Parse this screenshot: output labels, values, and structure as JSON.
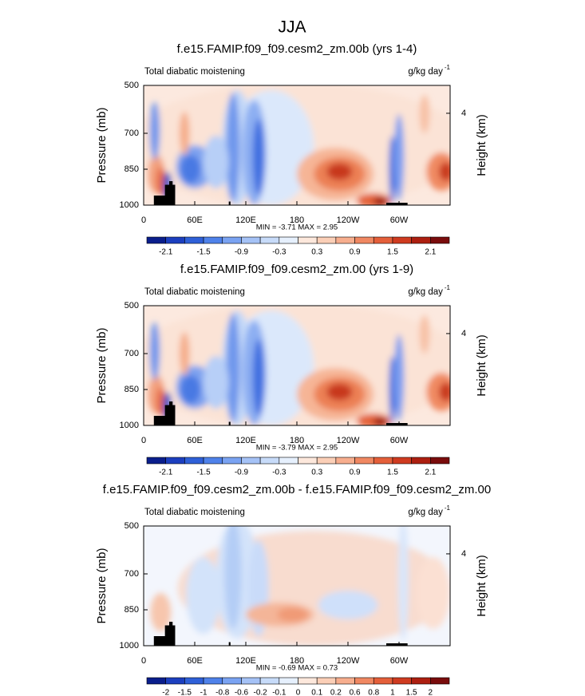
{
  "title": "JJA",
  "chart_data": [
    {
      "type": "contour",
      "title": "f.e15.FAMIP.f09_f09.cesm2_zm.00b (yrs 1-4)",
      "subtitle": "Total diabatic moistening",
      "units": "g/kg day",
      "units_exponent": "-1",
      "ylabel": "Pressure (mb)",
      "y2label": "Height (km)",
      "ylim": [
        500,
        1000
      ],
      "yticks": [
        500,
        700,
        850,
        1000
      ],
      "y2ticks": [
        4
      ],
      "xlim": [
        0,
        360
      ],
      "xticks": [
        0,
        {
          "value": 60,
          "label": "60E"
        },
        {
          "value": 120,
          "label": "120E"
        },
        180,
        {
          "value": 240,
          "label": "120W"
        },
        {
          "value": 300,
          "label": "60W"
        }
      ],
      "stats": "MIN =  -3.71  MAX =   2.95",
      "colorbar": {
        "colors": [
          "#0a1e8c",
          "#1c3fbf",
          "#2f60d8",
          "#4f82ea",
          "#7aa3f2",
          "#a5c2f6",
          "#c7dbf9",
          "#e6f0fd",
          "#fde8dc",
          "#fbcfb7",
          "#f7ae8e",
          "#f08862",
          "#e45f3a",
          "#cf3b20",
          "#ad1f10",
          "#7a0c0c"
        ],
        "levels": [
          -2.1,
          -1.8,
          -1.5,
          -1.2,
          -0.9,
          -0.6,
          -0.3,
          0,
          0.3,
          0.6,
          0.9,
          1.2,
          1.5,
          1.8,
          2.1
        ],
        "labeled_levels": [
          -2.1,
          -1.5,
          -0.9,
          -0.3,
          0.3,
          0.9,
          1.5,
          2.1
        ]
      }
    },
    {
      "type": "contour",
      "title": "f.e15.FAMIP.f09_f09.cesm2_zm.00 (yrs 1-9)",
      "subtitle": "Total diabatic moistening",
      "units": "g/kg day",
      "units_exponent": "-1",
      "ylabel": "Pressure (mb)",
      "y2label": "Height (km)",
      "ylim": [
        500,
        1000
      ],
      "yticks": [
        500,
        700,
        850,
        1000
      ],
      "y2ticks": [
        4
      ],
      "xlim": [
        0,
        360
      ],
      "xticks": [
        0,
        {
          "value": 60,
          "label": "60E"
        },
        {
          "value": 120,
          "label": "120E"
        },
        180,
        {
          "value": 240,
          "label": "120W"
        },
        {
          "value": 300,
          "label": "60W"
        }
      ],
      "stats": "MIN =  -3.79  MAX =   2.95",
      "colorbar": {
        "colors": [
          "#0a1e8c",
          "#1c3fbf",
          "#2f60d8",
          "#4f82ea",
          "#7aa3f2",
          "#a5c2f6",
          "#c7dbf9",
          "#e6f0fd",
          "#fde8dc",
          "#fbcfb7",
          "#f7ae8e",
          "#f08862",
          "#e45f3a",
          "#cf3b20",
          "#ad1f10",
          "#7a0c0c"
        ],
        "levels": [
          -2.1,
          -1.8,
          -1.5,
          -1.2,
          -0.9,
          -0.6,
          -0.3,
          0,
          0.3,
          0.6,
          0.9,
          1.2,
          1.5,
          1.8,
          2.1
        ],
        "labeled_levels": [
          -2.1,
          -1.5,
          -0.9,
          -0.3,
          0.3,
          0.9,
          1.5,
          2.1
        ]
      }
    },
    {
      "type": "contour",
      "title": "f.e15.FAMIP.f09_f09.cesm2_zm.00b - f.e15.FAMIP.f09_f09.cesm2_zm.00",
      "subtitle": "Total diabatic moistening",
      "units": "g/kg day",
      "units_exponent": "-1",
      "ylabel": "Pressure (mb)",
      "y2label": "Height (km)",
      "ylim": [
        500,
        1000
      ],
      "yticks": [
        500,
        700,
        850,
        1000
      ],
      "y2ticks": [
        4
      ],
      "xlim": [
        0,
        360
      ],
      "xticks": [
        0,
        {
          "value": 60,
          "label": "60E"
        },
        {
          "value": 120,
          "label": "120E"
        },
        180,
        {
          "value": 240,
          "label": "120W"
        },
        {
          "value": 300,
          "label": "60W"
        }
      ],
      "stats": "MIN =  -0.69  MAX =   0.73",
      "colorbar": {
        "colors": [
          "#0a1e8c",
          "#1c3fbf",
          "#2f60d8",
          "#4f82ea",
          "#7aa3f2",
          "#a5c2f6",
          "#c7dbf9",
          "#e6f0fd",
          "#fde8dc",
          "#fbcfb7",
          "#f7ae8e",
          "#f08862",
          "#e45f3a",
          "#cf3b20",
          "#ad1f10",
          "#7a0c0c"
        ],
        "levels": [
          -2,
          -1.5,
          -1,
          -0.8,
          -0.6,
          -0.2,
          -0.1,
          0,
          0.1,
          0.2,
          0.6,
          0.8,
          1,
          1.5,
          2
        ],
        "labeled_levels": [
          -2,
          -1.5,
          -1,
          -0.8,
          -0.6,
          -0.2,
          -0.1,
          0,
          0.1,
          0.2,
          0.6,
          0.8,
          1,
          1.5,
          2
        ]
      }
    }
  ]
}
